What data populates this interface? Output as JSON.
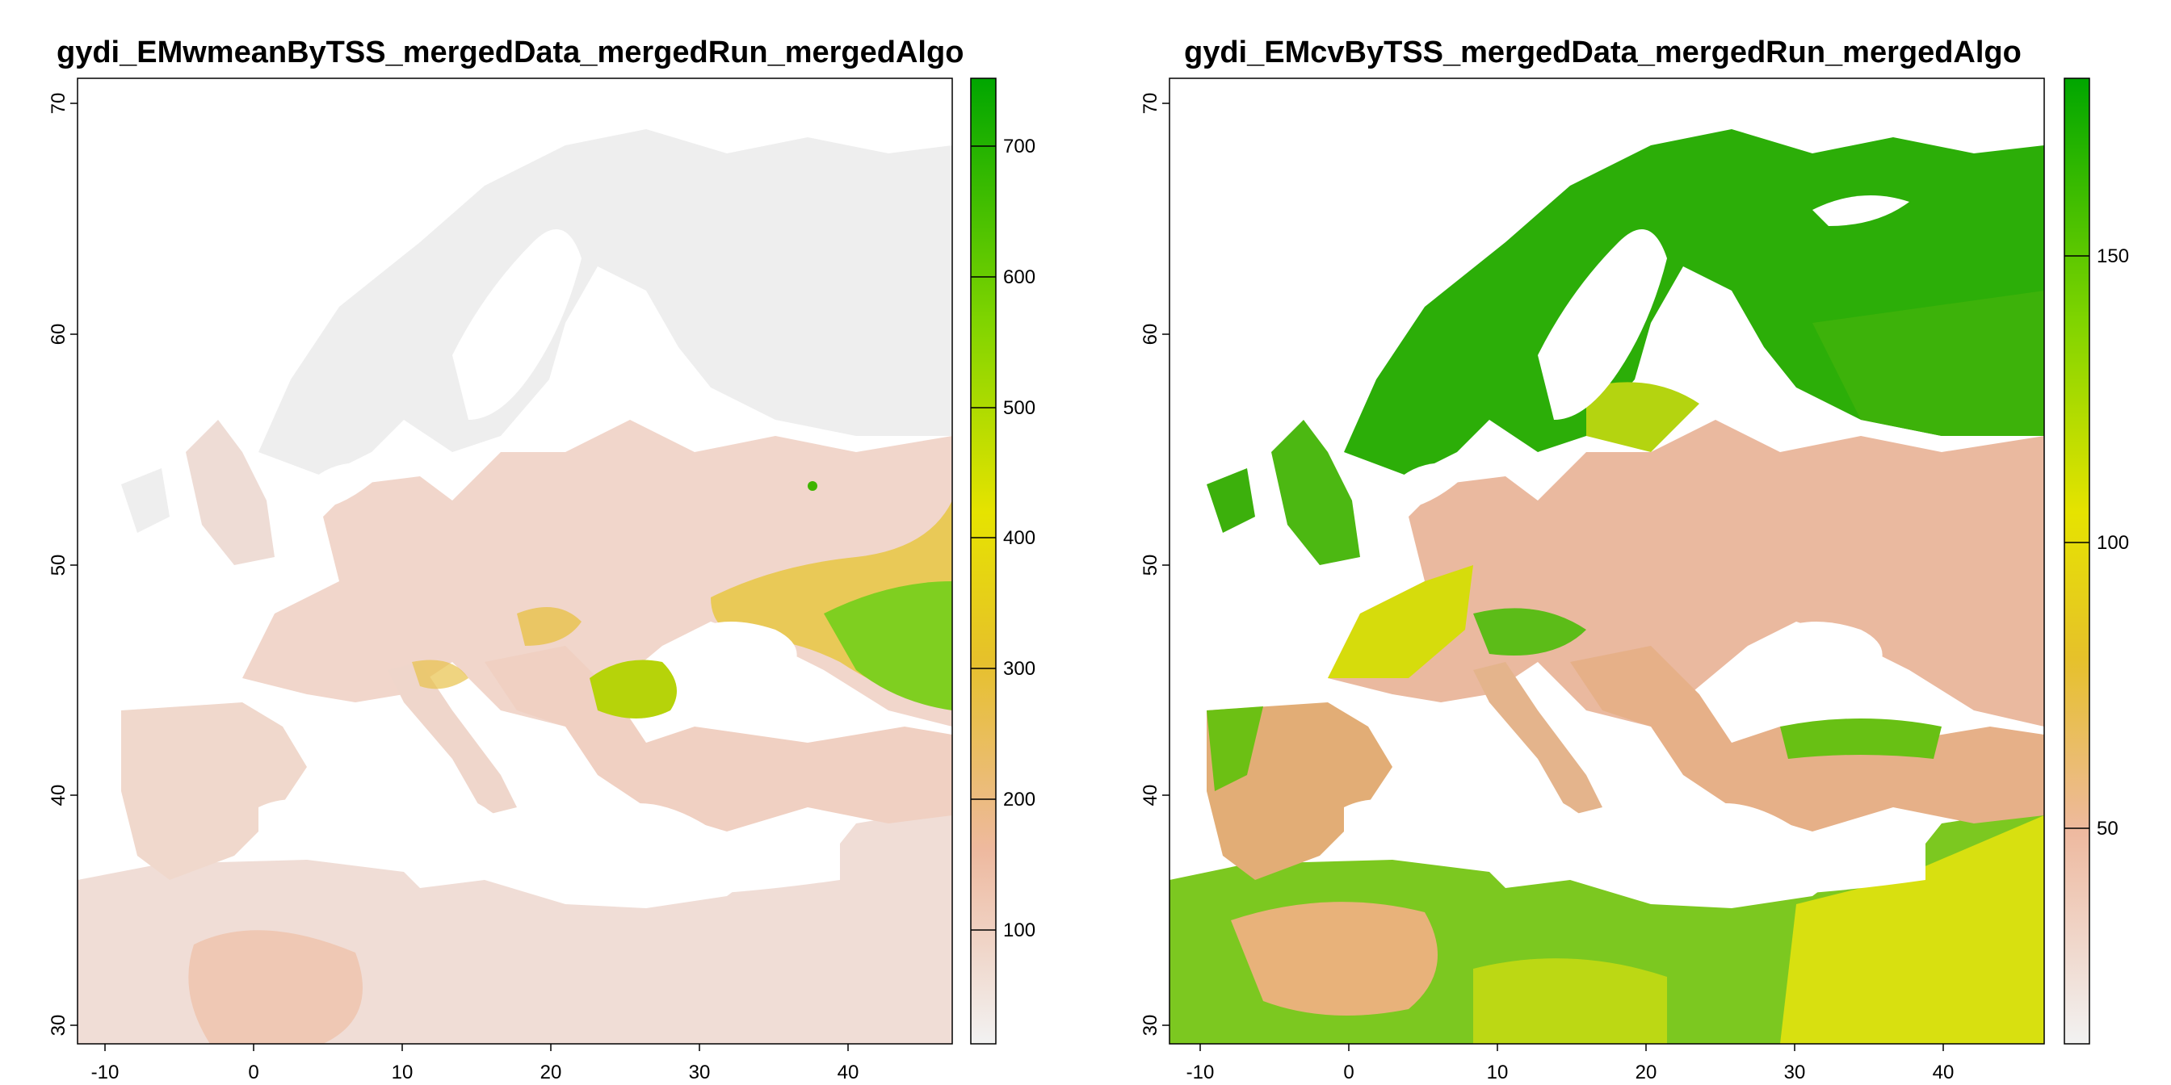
{
  "panels": [
    {
      "title": "gydi_EMwmeanByTSS_mergedData_mergedRun_mergedAlgo",
      "x_ticks": [
        "-10",
        "0",
        "10",
        "20",
        "30",
        "40"
      ],
      "y_ticks": [
        "30",
        "40",
        "50",
        "60",
        "70"
      ],
      "legend_ticks": [
        "100",
        "200",
        "300",
        "400",
        "500",
        "600",
        "700"
      ],
      "legend_range": [
        10,
        750
      ]
    },
    {
      "title": "gydi_EMcvByTSS_mergedData_mergedRun_mergedAlgo",
      "x_ticks": [
        "-10",
        "0",
        "10",
        "20",
        "30",
        "40"
      ],
      "y_ticks": [
        "30",
        "40",
        "50",
        "60",
        "70"
      ],
      "legend_ticks": [
        "50",
        "100",
        "150"
      ],
      "legend_range": [
        5,
        180
      ]
    }
  ],
  "colors": {
    "ramp": [
      "#f2f2f2",
      "#eeb99f",
      "#e6c12a",
      "#e6e300",
      "#7fd400",
      "#00a600"
    ],
    "frame": "#000000"
  }
}
